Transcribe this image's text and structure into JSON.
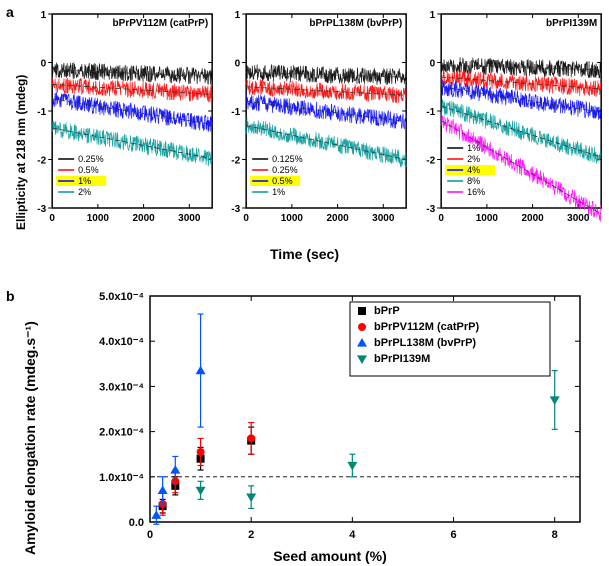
{
  "panels": {
    "a_label": "a",
    "b_label": "b"
  },
  "topAxis": {
    "ylabel": "Ellipticity at 218 nm (mdeg)",
    "xlabel": "Time (sec)",
    "label_fontsize": 12
  },
  "miniCharts": [
    {
      "title": "bPrPV112M (catPrP)",
      "xlim": [
        0,
        3500
      ],
      "xtick_step": 1000,
      "ylim": [
        -3,
        1
      ],
      "ytick_step": 1,
      "background": "#ffffff",
      "grid_color": "none",
      "series": [
        {
          "label": "0.25%",
          "color": "#000000",
          "start": -0.15,
          "slope": -4e-05,
          "highlighted": false
        },
        {
          "label": "0.5%",
          "color": "#ff0000",
          "start": -0.45,
          "slope": -6e-05,
          "highlighted": false
        },
        {
          "label": "1%",
          "color": "#0000ff",
          "start": -0.75,
          "slope": -0.00015,
          "highlighted": true
        },
        {
          "label": "2%",
          "color": "#009999",
          "start": -1.35,
          "slope": -0.00018,
          "highlighted": false
        }
      ],
      "noise_amp": 0.35
    },
    {
      "title": "bPrPL138M (bvPrP)",
      "xlim": [
        0,
        3500
      ],
      "xtick_step": 1000,
      "ylim": [
        -3,
        1
      ],
      "ytick_step": 1,
      "background": "#ffffff",
      "grid_color": "none",
      "series": [
        {
          "label": "0.125%",
          "color": "#000000",
          "start": -0.2,
          "slope": -3e-05,
          "highlighted": false
        },
        {
          "label": "0.25%",
          "color": "#ff0000",
          "start": -0.5,
          "slope": -5e-05,
          "highlighted": false
        },
        {
          "label": "0.5%",
          "color": "#0000ff",
          "start": -0.8,
          "slope": -0.00012,
          "highlighted": true
        },
        {
          "label": "1%",
          "color": "#009999",
          "start": -1.3,
          "slope": -0.0002,
          "highlighted": false
        }
      ],
      "noise_amp": 0.35
    },
    {
      "title": "bPrPI139M",
      "xlim": [
        0,
        3500
      ],
      "xtick_step": 1000,
      "ylim": [
        -3,
        1
      ],
      "ytick_step": 1,
      "background": "#ffffff",
      "grid_color": "none",
      "series": [
        {
          "label": "1%",
          "color": "#000000",
          "start": -0.05,
          "slope": -3e-05,
          "highlighted": false
        },
        {
          "label": "2%",
          "color": "#ff0000",
          "start": -0.3,
          "slope": -7e-05,
          "highlighted": false
        },
        {
          "label": "4%",
          "color": "#0000ff",
          "start": -0.5,
          "slope": -0.00015,
          "highlighted": true
        },
        {
          "label": "8%",
          "color": "#009999",
          "start": -0.9,
          "slope": -0.0003,
          "highlighted": false
        },
        {
          "label": "16%",
          "color": "#ff00ff",
          "start": -1.2,
          "slope": -0.00055,
          "highlighted": false
        }
      ],
      "noise_amp": 0.35
    }
  ],
  "scatter": {
    "type": "scatter",
    "xlabel": "Seed amount (%)",
    "ylabel": "Amyloid elongation rate (mdeg.s⁻¹)",
    "xlim": [
      0,
      8.5
    ],
    "xtick_step": 2,
    "ylim": [
      0,
      0.0005
    ],
    "ytick_step": 0.0001,
    "ytick_labels": [
      "0.0",
      "1.0x10⁻⁴",
      "2.0x10⁻⁴",
      "3.0x10⁻⁴",
      "4.0x10⁻⁴",
      "5.0x10⁻⁴"
    ],
    "xtick_labels": [
      "0",
      "2",
      "4",
      "6",
      "8"
    ],
    "ref_line_y": 0.0001,
    "ref_line_dash": "4,3",
    "ref_line_color": "#000000",
    "background": "#ffffff",
    "axis_color": "#000000",
    "legend_border": "#000000",
    "label_fontsize": 14,
    "tick_fontsize": 11,
    "series": [
      {
        "name": "bPrP",
        "marker": "square",
        "color": "#000000",
        "points": [
          {
            "x": 0.25,
            "y": 3.5e-05,
            "err": 1.5e-05
          },
          {
            "x": 0.5,
            "y": 8e-05,
            "err": 2e-05
          },
          {
            "x": 1.0,
            "y": 0.00014,
            "err": 2.5e-05
          },
          {
            "x": 2.0,
            "y": 0.00018,
            "err": 3e-05
          }
        ]
      },
      {
        "name": "bPrPV112M (catPrP)",
        "marker": "circle",
        "color": "#ff0000",
        "points": [
          {
            "x": 0.25,
            "y": 4e-05,
            "err": 2.5e-05
          },
          {
            "x": 0.5,
            "y": 9e-05,
            "err": 2.5e-05
          },
          {
            "x": 1.0,
            "y": 0.000155,
            "err": 3e-05
          },
          {
            "x": 2.0,
            "y": 0.000185,
            "err": 3.5e-05
          }
        ]
      },
      {
        "name": "bPrPL138M (bvPrP)",
        "marker": "triangle",
        "color": "#0055ff",
        "points": [
          {
            "x": 0.125,
            "y": 1.5e-05,
            "err": 2e-05
          },
          {
            "x": 0.25,
            "y": 7e-05,
            "err": 3e-05
          },
          {
            "x": 0.5,
            "y": 0.000115,
            "err": 3e-05
          },
          {
            "x": 1.0,
            "y": 0.000335,
            "err": 0.000125
          }
        ]
      },
      {
        "name": "bPrPI139M",
        "marker": "invtriangle",
        "color": "#008877",
        "points": [
          {
            "x": 1.0,
            "y": 7e-05,
            "err": 2e-05
          },
          {
            "x": 2.0,
            "y": 5.5e-05,
            "err": 2.5e-05
          },
          {
            "x": 4.0,
            "y": 0.000125,
            "err": 2.5e-05
          },
          {
            "x": 8.0,
            "y": 0.00027,
            "err": 6.5e-05
          }
        ]
      }
    ]
  }
}
